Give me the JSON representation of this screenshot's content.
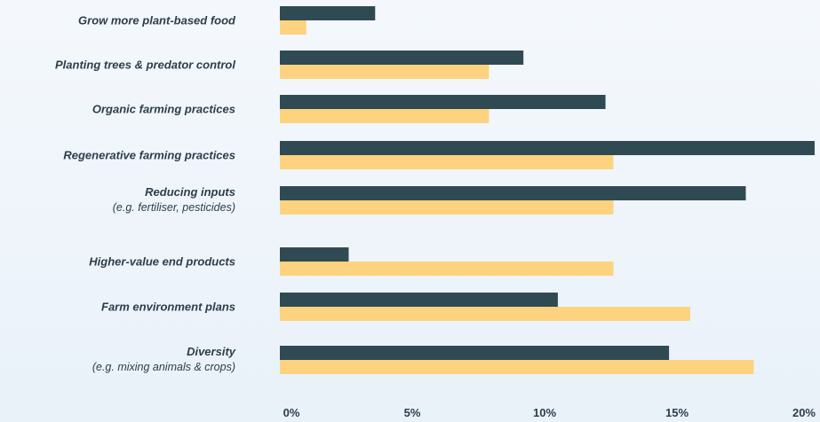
{
  "chart_data": {
    "type": "bar",
    "orientation": "horizontal",
    "categories": [
      {
        "label": "Grow more plant-based food",
        "sub": ""
      },
      {
        "label": "Planting trees & predator control",
        "sub": ""
      },
      {
        "label": "Organic farming practices",
        "sub": ""
      },
      {
        "label": "Regenerative farming practices",
        "sub": ""
      },
      {
        "label": "Reducing inputs",
        "sub": "(e.g. fertiliser, pesticides)"
      },
      {
        "label": "Higher-value end products",
        "sub": ""
      },
      {
        "label": "Farm environment plans",
        "sub": ""
      },
      {
        "label": "Diversity",
        "sub": "(e.g. mixing animals & crops)"
      }
    ],
    "series": [
      {
        "color": "#2f4a52",
        "values": [
          3.6,
          9.2,
          12.3,
          20.2,
          17.6,
          2.6,
          10.5,
          14.7
        ]
      },
      {
        "color": "#fdd37f",
        "values": [
          1.0,
          7.9,
          7.9,
          12.6,
          12.6,
          12.6,
          15.5,
          17.9
        ]
      }
    ],
    "xlim": [
      0,
      20
    ],
    "x_ticks": [
      "0%",
      "5%",
      "10%",
      "15%",
      "20%"
    ],
    "grid": false
  }
}
